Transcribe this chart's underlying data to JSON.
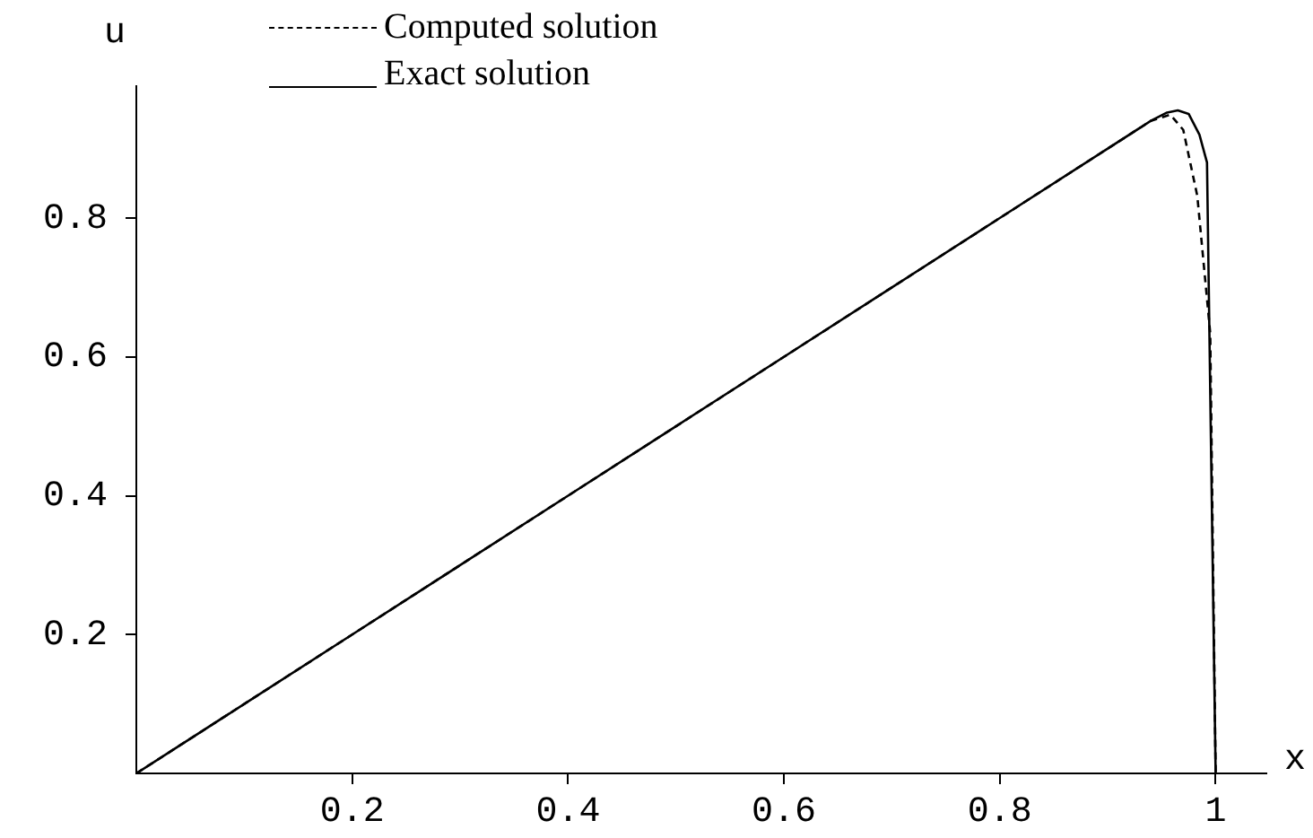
{
  "chart_data": {
    "type": "line",
    "xlabel": "x",
    "ylabel": "u",
    "xlim": [
      0,
      1.047
    ],
    "ylim": [
      0,
      0.99
    ],
    "xticks": [
      0.2,
      0.4,
      0.6,
      0.8,
      1
    ],
    "yticks": [
      0.2,
      0.4,
      0.6,
      0.8
    ],
    "grid": false,
    "legend": "top left",
    "series": [
      {
        "name": "Computed solution",
        "color": "#000000",
        "line_style": "dashed",
        "x": [
          0,
          0.1,
          0.2,
          0.3,
          0.4,
          0.5,
          0.6,
          0.7,
          0.8,
          0.9,
          0.94,
          0.958,
          0.97,
          0.983,
          0.995,
          1.0
        ],
        "values": [
          0,
          0.1,
          0.2,
          0.3,
          0.4,
          0.5,
          0.6,
          0.7,
          0.8,
          0.9,
          0.94,
          0.949,
          0.927,
          0.832,
          0.634,
          0
        ]
      },
      {
        "name": "Exact solution",
        "color": "#000000",
        "line_style": "solid",
        "x": [
          0,
          0.1,
          0.2,
          0.3,
          0.4,
          0.5,
          0.6,
          0.7,
          0.8,
          0.9,
          0.94,
          0.955,
          0.965,
          0.975,
          0.985,
          0.992,
          1.0
        ],
        "values": [
          0,
          0.1,
          0.2,
          0.3,
          0.4,
          0.5,
          0.6,
          0.7,
          0.8,
          0.9,
          0.94,
          0.952,
          0.955,
          0.95,
          0.92,
          0.88,
          0
        ]
      }
    ]
  }
}
